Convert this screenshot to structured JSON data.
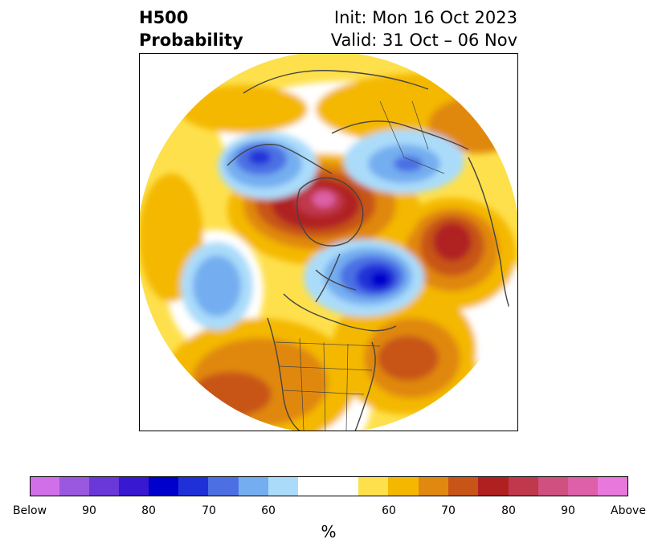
{
  "title": {
    "variable": "H500",
    "product": "Probability",
    "init": "Init: Mon 16 Oct 2023",
    "valid": "Valid: 31 Oct – 06 Nov"
  },
  "colorbar": {
    "unit": "%",
    "tick_labels": [
      "Below",
      "90",
      "80",
      "70",
      "60",
      "60",
      "70",
      "80",
      "90",
      "Above"
    ],
    "colors": [
      "#d070e8",
      "#9a58e0",
      "#6a38d8",
      "#3818d0",
      "#0000cc",
      "#2030d8",
      "#4c70e4",
      "#74aef0",
      "#aadcfa",
      "#ffffff",
      "#fee04c",
      "#f4b800",
      "#e08810",
      "#c85418",
      "#b02020",
      "#c0384c",
      "#d05080",
      "#de60a8",
      "#e878dc"
    ]
  },
  "map": {
    "projection": "north-polar-stereographic",
    "anomalies": [
      {
        "sign": "below",
        "region": "Gulf of Alaska / NE Pacific",
        "peak_percent": 60
      },
      {
        "sign": "below",
        "region": "Hudson Bay / Baffin Island",
        "peak_percent": 80
      },
      {
        "sign": "below",
        "region": "Eastern Siberia",
        "peak_percent": 70
      },
      {
        "sign": "below",
        "region": "Kamchatka / Sea of Okhotsk",
        "peak_percent": 80
      },
      {
        "sign": "above",
        "region": "Greenland Sea / Svalbard",
        "peak_percent": 90
      },
      {
        "sign": "above",
        "region": "Alaska / Bering",
        "peak_percent": 80
      },
      {
        "sign": "above",
        "region": "Western Atlantic off US East Coast",
        "peak_percent": 70
      },
      {
        "sign": "above",
        "region": "Western United States",
        "peak_percent": 70
      }
    ]
  }
}
